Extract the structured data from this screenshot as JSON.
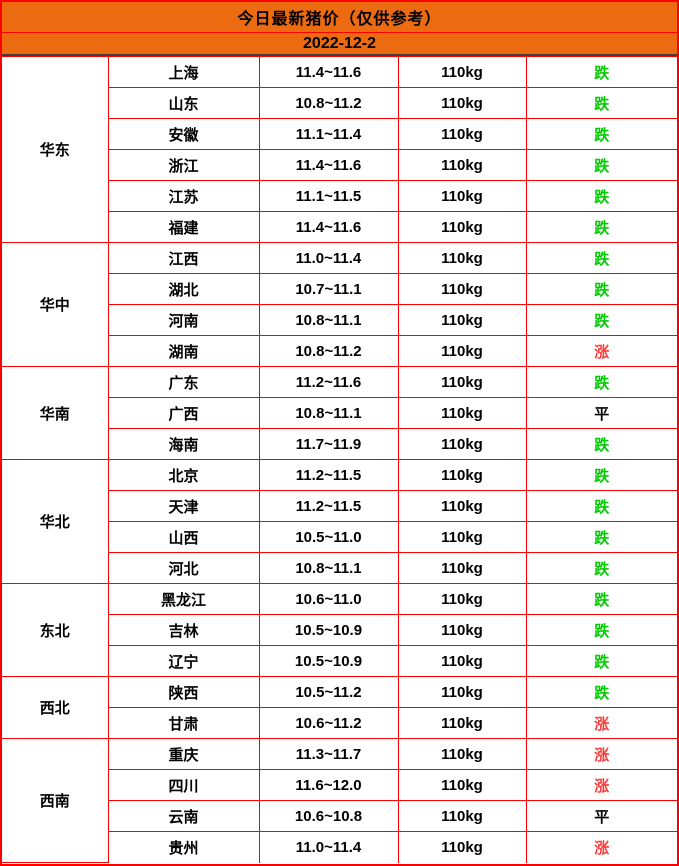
{
  "colors": {
    "header_bg": "#EC6A10",
    "border": "#FE0000",
    "date_divider": "#3F3F3F",
    "trend_down": "#00CC00",
    "trend_up": "#FB3B3B",
    "trend_flat": "#000000"
  },
  "chart_data": {
    "type": "table",
    "title": "今日最新猪价（仅供参考）",
    "date": "2022-12-2",
    "groups": [
      {
        "region": "华东",
        "rows": [
          {
            "province": "上海",
            "price": "11.4~11.6",
            "weight": "110kg",
            "trend": "跌",
            "direction": "down"
          },
          {
            "province": "山东",
            "price": "10.8~11.2",
            "weight": "110kg",
            "trend": "跌",
            "direction": "down"
          },
          {
            "province": "安徽",
            "price": "11.1~11.4",
            "weight": "110kg",
            "trend": "跌",
            "direction": "down"
          },
          {
            "province": "浙江",
            "price": "11.4~11.6",
            "weight": "110kg",
            "trend": "跌",
            "direction": "down"
          },
          {
            "province": "江苏",
            "price": "11.1~11.5",
            "weight": "110kg",
            "trend": "跌",
            "direction": "down"
          },
          {
            "province": "福建",
            "price": "11.4~11.6",
            "weight": "110kg",
            "trend": "跌",
            "direction": "down"
          }
        ]
      },
      {
        "region": "华中",
        "rows": [
          {
            "province": "江西",
            "price": "11.0~11.4",
            "weight": "110kg",
            "trend": "跌",
            "direction": "down"
          },
          {
            "province": "湖北",
            "price": "10.7~11.1",
            "weight": "110kg",
            "trend": "跌",
            "direction": "down"
          },
          {
            "province": "河南",
            "price": "10.8~11.1",
            "weight": "110kg",
            "trend": "跌",
            "direction": "down"
          },
          {
            "province": "湖南",
            "price": "10.8~11.2",
            "weight": "110kg",
            "trend": "涨",
            "direction": "up"
          }
        ]
      },
      {
        "region": "华南",
        "rows": [
          {
            "province": "广东",
            "price": "11.2~11.6",
            "weight": "110kg",
            "trend": "跌",
            "direction": "down"
          },
          {
            "province": "广西",
            "price": "10.8~11.1",
            "weight": "110kg",
            "trend": "平",
            "direction": "flat"
          },
          {
            "province": "海南",
            "price": "11.7~11.9",
            "weight": "110kg",
            "trend": "跌",
            "direction": "down"
          }
        ]
      },
      {
        "region": "华北",
        "rows": [
          {
            "province": "北京",
            "price": "11.2~11.5",
            "weight": "110kg",
            "trend": "跌",
            "direction": "down"
          },
          {
            "province": "天津",
            "price": "11.2~11.5",
            "weight": "110kg",
            "trend": "跌",
            "direction": "down"
          },
          {
            "province": "山西",
            "price": "10.5~11.0",
            "weight": "110kg",
            "trend": "跌",
            "direction": "down"
          },
          {
            "province": "河北",
            "price": "10.8~11.1",
            "weight": "110kg",
            "trend": "跌",
            "direction": "down"
          }
        ]
      },
      {
        "region": "东北",
        "rows": [
          {
            "province": "黑龙江",
            "price": "10.6~11.0",
            "weight": "110kg",
            "trend": "跌",
            "direction": "down"
          },
          {
            "province": "吉林",
            "price": "10.5~10.9",
            "weight": "110kg",
            "trend": "跌",
            "direction": "down"
          },
          {
            "province": "辽宁",
            "price": "10.5~10.9",
            "weight": "110kg",
            "trend": "跌",
            "direction": "down"
          }
        ]
      },
      {
        "region": "西北",
        "rows": [
          {
            "province": "陕西",
            "price": "10.5~11.2",
            "weight": "110kg",
            "trend": "跌",
            "direction": "down"
          },
          {
            "province": "甘肃",
            "price": "10.6~11.2",
            "weight": "110kg",
            "trend": "涨",
            "direction": "up"
          }
        ]
      },
      {
        "region": "西南",
        "rows": [
          {
            "province": "重庆",
            "price": "11.3~11.7",
            "weight": "110kg",
            "trend": "涨",
            "direction": "up"
          },
          {
            "province": "四川",
            "price": "11.6~12.0",
            "weight": "110kg",
            "trend": "涨",
            "direction": "up"
          },
          {
            "province": "云南",
            "price": "10.6~10.8",
            "weight": "110kg",
            "trend": "平",
            "direction": "flat"
          },
          {
            "province": "贵州",
            "price": "11.0~11.4",
            "weight": "110kg",
            "trend": "涨",
            "direction": "up"
          }
        ]
      }
    ]
  }
}
